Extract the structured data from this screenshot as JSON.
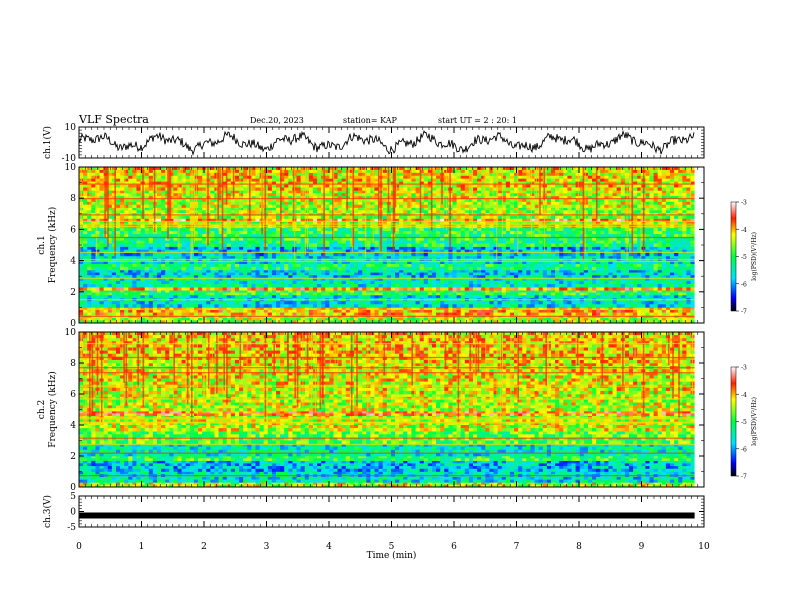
{
  "header": {
    "title": "VLF Spectra",
    "date": "Dec.20, 2023",
    "station": "station= KAP",
    "start_ut": "start UT =  2 : 20: 1"
  },
  "chart_data": [
    {
      "type": "line",
      "panel": "ch1-waveform",
      "ylabel": "ch.1(V)",
      "ylim": [
        -10,
        10
      ],
      "yticks": [
        "10",
        "-10"
      ],
      "xlim": [
        0,
        9.85
      ],
      "note_values": "noisy waveform oscillating between about -6 and 6 V"
    },
    {
      "type": "heatmap",
      "panel": "ch1-spectrogram",
      "ylabel": "ch.1\nFrequency (kHz)",
      "ylim": [
        0,
        10
      ],
      "yticks": [
        "0",
        "2",
        "4",
        "6",
        "8",
        "10"
      ],
      "xlim": [
        0,
        9.85
      ],
      "band_intensity_khz": [
        [
          0,
          0.5,
          -4.5
        ],
        [
          0.5,
          1.0,
          -4.0
        ],
        [
          1.0,
          1.8,
          -5.6
        ],
        [
          1.8,
          2.1,
          -5.0
        ],
        [
          2.1,
          2.3,
          -3.8
        ],
        [
          2.3,
          2.9,
          -5.5
        ],
        [
          2.9,
          3.4,
          -5.7
        ],
        [
          3.4,
          3.8,
          -5.2
        ],
        [
          3.8,
          4.3,
          -5.6
        ],
        [
          4.3,
          4.9,
          -5.8
        ],
        [
          4.9,
          5.3,
          -5.2
        ],
        [
          5.3,
          6.1,
          -5.0
        ],
        [
          6.1,
          6.5,
          -4.4
        ],
        [
          6.5,
          6.7,
          -3.6
        ],
        [
          6.7,
          7.4,
          -4.6
        ],
        [
          7.4,
          8.5,
          -4.4
        ],
        [
          8.5,
          10,
          -4.2
        ]
      ],
      "colorbar": {
        "label": "log(PSD)(V²/Hz)",
        "ticks": [
          "-3",
          "-4",
          "-5",
          "-6",
          "-7"
        ],
        "range": [
          -7,
          -3
        ]
      }
    },
    {
      "type": "heatmap",
      "panel": "ch2-spectrogram",
      "ylabel": "ch.2\nFrequency (kHz)",
      "ylim": [
        0,
        10
      ],
      "yticks": [
        "0",
        "2",
        "4",
        "6",
        "8",
        "10"
      ],
      "xlim": [
        0,
        9.85
      ],
      "band_intensity_khz": [
        [
          0,
          0.3,
          -4.4
        ],
        [
          0.3,
          1.0,
          -5.6
        ],
        [
          1.0,
          1.7,
          -5.8
        ],
        [
          1.7,
          2.0,
          -5.0
        ],
        [
          2.0,
          2.8,
          -5.5
        ],
        [
          2.8,
          3.6,
          -4.8
        ],
        [
          3.6,
          4.6,
          -4.4
        ],
        [
          4.6,
          4.9,
          -3.8
        ],
        [
          4.9,
          6.0,
          -4.4
        ],
        [
          6.0,
          8.0,
          -4.3
        ],
        [
          8.0,
          10,
          -4.1
        ]
      ],
      "colorbar": {
        "label": "log(PSD)(V²/Hz)",
        "ticks": [
          "-3",
          "-4",
          "-5",
          "-6",
          "-7"
        ],
        "range": [
          -7,
          -3
        ]
      }
    },
    {
      "type": "line",
      "panel": "ch3-waveform",
      "ylabel": "ch.3(V)",
      "ylim": [
        -5,
        5
      ],
      "yticks": [
        "5",
        "0",
        "-5"
      ],
      "xlim": [
        0,
        9.85
      ],
      "constant_value": -1.3
    }
  ],
  "xaxis": {
    "label": "Time (min)",
    "ticks": [
      "0",
      "1",
      "2",
      "3",
      "4",
      "5",
      "6",
      "7",
      "8",
      "9",
      "10"
    ],
    "range": [
      0,
      10
    ]
  }
}
